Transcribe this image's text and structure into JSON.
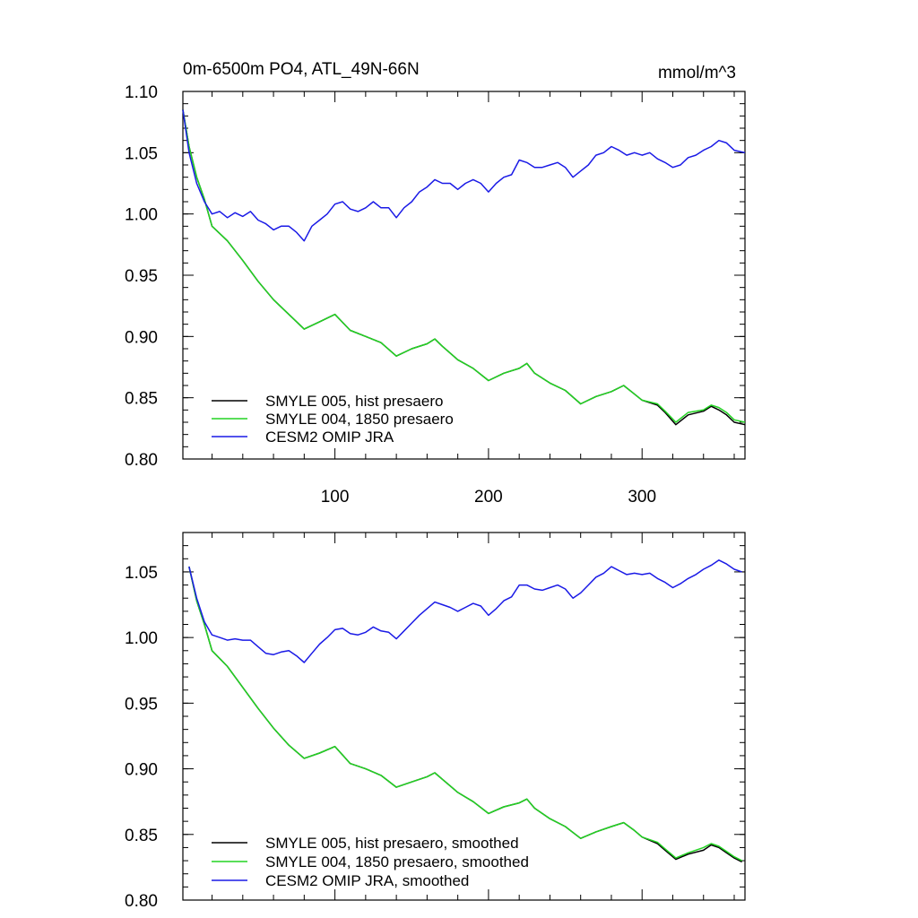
{
  "colors": {
    "black": "#000000",
    "green": "#22d322",
    "blue": "#1a1ae6"
  },
  "chart_data": [
    {
      "type": "line",
      "title": "0m-6500m PO4, ATL_49N-66N",
      "units": "mmol/m^3",
      "xlabel": "",
      "ylabel": "",
      "xlim": [
        1,
        367
      ],
      "ylim": [
        0.8,
        1.1
      ],
      "yticks": [
        0.8,
        0.85,
        0.9,
        0.95,
        1.0,
        1.05,
        1.1
      ],
      "ytick_labels": [
        "0.80",
        "0.85",
        "0.90",
        "0.95",
        "1.00",
        "1.05",
        "1.10"
      ],
      "xticks": [
        100,
        200,
        300
      ],
      "xtick_labels": [
        "100",
        "200",
        "300"
      ],
      "legend_position": "bottom-left",
      "series": [
        {
          "name": "SMYLE 005, hist presaero",
          "color": "#000000",
          "x": [
            1,
            5,
            10,
            15,
            20,
            30,
            40,
            50,
            60,
            70,
            80,
            90,
            100,
            110,
            120,
            130,
            140,
            150,
            160,
            165,
            170,
            180,
            190,
            200,
            210,
            220,
            225,
            230,
            240,
            250,
            260,
            270,
            280,
            288,
            295,
            300,
            310,
            315,
            322,
            330,
            340,
            345,
            350,
            355,
            360,
            367
          ],
          "values": [
            1.085,
            1.055,
            1.03,
            1.012,
            0.99,
            0.978,
            0.962,
            0.945,
            0.93,
            0.918,
            0.906,
            0.912,
            0.918,
            0.905,
            0.9,
            0.895,
            0.884,
            0.89,
            0.894,
            0.898,
            0.892,
            0.881,
            0.874,
            0.864,
            0.87,
            0.874,
            0.878,
            0.87,
            0.862,
            0.856,
            0.845,
            0.851,
            0.855,
            0.86,
            0.853,
            0.848,
            0.844,
            0.838,
            0.828,
            0.836,
            0.839,
            0.843,
            0.84,
            0.836,
            0.83,
            0.828
          ]
        },
        {
          "name": "SMYLE 004, 1850 presaero",
          "color": "#22d322",
          "x": [
            1,
            5,
            10,
            15,
            20,
            30,
            40,
            50,
            60,
            70,
            80,
            90,
            100,
            110,
            120,
            130,
            140,
            150,
            160,
            165,
            170,
            180,
            190,
            200,
            210,
            220,
            225,
            230,
            240,
            250,
            260,
            270,
            280,
            288,
            295,
            300,
            310,
            315,
            322,
            330,
            340,
            345,
            350,
            355,
            360,
            367
          ],
          "values": [
            1.085,
            1.055,
            1.03,
            1.012,
            0.99,
            0.978,
            0.962,
            0.945,
            0.93,
            0.918,
            0.906,
            0.912,
            0.918,
            0.905,
            0.9,
            0.895,
            0.884,
            0.89,
            0.894,
            0.898,
            0.892,
            0.881,
            0.874,
            0.864,
            0.87,
            0.874,
            0.878,
            0.87,
            0.862,
            0.856,
            0.845,
            0.851,
            0.855,
            0.86,
            0.853,
            0.848,
            0.845,
            0.839,
            0.83,
            0.838,
            0.84,
            0.844,
            0.842,
            0.838,
            0.832,
            0.83
          ]
        },
        {
          "name": "CESM2 OMIP JRA",
          "color": "#1a1ae6",
          "x": [
            1,
            5,
            10,
            15,
            20,
            25,
            30,
            35,
            40,
            45,
            50,
            55,
            60,
            65,
            70,
            75,
            80,
            85,
            90,
            95,
            100,
            105,
            110,
            115,
            120,
            125,
            130,
            135,
            140,
            145,
            150,
            155,
            160,
            165,
            170,
            175,
            180,
            185,
            190,
            195,
            200,
            205,
            210,
            215,
            220,
            225,
            230,
            235,
            240,
            245,
            250,
            255,
            260,
            265,
            270,
            275,
            280,
            285,
            290,
            295,
            300,
            305,
            310,
            315,
            320,
            325,
            330,
            335,
            340,
            345,
            350,
            355,
            360,
            367
          ],
          "values": [
            1.085,
            1.05,
            1.025,
            1.01,
            1.0,
            1.002,
            0.997,
            1.001,
            0.998,
            1.002,
            0.995,
            0.992,
            0.987,
            0.99,
            0.99,
            0.985,
            0.978,
            0.99,
            0.995,
            1.0,
            1.008,
            1.01,
            1.004,
            1.002,
            1.005,
            1.01,
            1.005,
            1.005,
            0.997,
            1.005,
            1.01,
            1.018,
            1.022,
            1.028,
            1.025,
            1.025,
            1.02,
            1.025,
            1.028,
            1.025,
            1.018,
            1.025,
            1.03,
            1.032,
            1.044,
            1.042,
            1.038,
            1.038,
            1.04,
            1.042,
            1.038,
            1.03,
            1.035,
            1.04,
            1.048,
            1.05,
            1.055,
            1.052,
            1.048,
            1.05,
            1.048,
            1.05,
            1.045,
            1.042,
            1.038,
            1.04,
            1.046,
            1.048,
            1.052,
            1.055,
            1.06,
            1.058,
            1.052,
            1.05
          ]
        }
      ]
    },
    {
      "type": "line",
      "title": "",
      "xlabel": "",
      "ylabel": "",
      "xlim": [
        1,
        367
      ],
      "ylim": [
        0.8,
        1.08
      ],
      "yticks": [
        0.8,
        0.85,
        0.9,
        0.95,
        1.0,
        1.05
      ],
      "ytick_labels": [
        "0.80",
        "0.85",
        "0.90",
        "0.95",
        "1.00",
        "1.05"
      ],
      "xticks": [
        100,
        200,
        300
      ],
      "xtick_labels": [],
      "legend_position": "bottom-left",
      "series": [
        {
          "name": "SMYLE 005, hist presaero, smoothed",
          "color": "#000000",
          "x": [
            5,
            10,
            15,
            20,
            30,
            40,
            50,
            60,
            70,
            80,
            90,
            100,
            110,
            120,
            130,
            140,
            150,
            160,
            165,
            170,
            180,
            190,
            200,
            210,
            220,
            225,
            230,
            240,
            250,
            260,
            270,
            280,
            288,
            295,
            300,
            310,
            315,
            322,
            330,
            340,
            345,
            350,
            355,
            360,
            365
          ],
          "values": [
            1.054,
            1.028,
            1.01,
            0.99,
            0.978,
            0.962,
            0.946,
            0.931,
            0.918,
            0.908,
            0.912,
            0.917,
            0.904,
            0.9,
            0.895,
            0.886,
            0.89,
            0.894,
            0.897,
            0.892,
            0.882,
            0.875,
            0.866,
            0.871,
            0.874,
            0.877,
            0.87,
            0.862,
            0.856,
            0.847,
            0.852,
            0.856,
            0.859,
            0.853,
            0.848,
            0.843,
            0.838,
            0.831,
            0.835,
            0.838,
            0.842,
            0.84,
            0.836,
            0.832,
            0.829
          ]
        },
        {
          "name": "SMYLE 004, 1850 presaero, smoothed",
          "color": "#22d322",
          "x": [
            5,
            10,
            15,
            20,
            30,
            40,
            50,
            60,
            70,
            80,
            90,
            100,
            110,
            120,
            130,
            140,
            150,
            160,
            165,
            170,
            180,
            190,
            200,
            210,
            220,
            225,
            230,
            240,
            250,
            260,
            270,
            280,
            288,
            295,
            300,
            310,
            315,
            322,
            330,
            340,
            345,
            350,
            355,
            360,
            365
          ],
          "values": [
            1.054,
            1.028,
            1.01,
            0.99,
            0.978,
            0.962,
            0.946,
            0.931,
            0.918,
            0.908,
            0.912,
            0.917,
            0.904,
            0.9,
            0.895,
            0.886,
            0.89,
            0.894,
            0.897,
            0.892,
            0.882,
            0.875,
            0.866,
            0.871,
            0.874,
            0.877,
            0.87,
            0.862,
            0.856,
            0.847,
            0.852,
            0.856,
            0.859,
            0.853,
            0.848,
            0.844,
            0.839,
            0.832,
            0.836,
            0.84,
            0.843,
            0.841,
            0.837,
            0.833,
            0.83
          ]
        },
        {
          "name": "CESM2 OMIP JRA, smoothed",
          "color": "#1a1ae6",
          "x": [
            5,
            10,
            15,
            20,
            25,
            30,
            35,
            40,
            45,
            50,
            55,
            60,
            65,
            70,
            75,
            80,
            85,
            90,
            95,
            100,
            105,
            110,
            115,
            120,
            125,
            130,
            135,
            140,
            145,
            150,
            155,
            160,
            165,
            170,
            175,
            180,
            185,
            190,
            195,
            200,
            205,
            210,
            215,
            220,
            225,
            230,
            235,
            240,
            245,
            250,
            255,
            260,
            265,
            270,
            275,
            280,
            285,
            290,
            295,
            300,
            305,
            310,
            315,
            320,
            325,
            330,
            335,
            340,
            345,
            350,
            355,
            360,
            365
          ],
          "values": [
            1.054,
            1.03,
            1.012,
            1.002,
            1.0,
            0.998,
            0.999,
            0.998,
            0.998,
            0.993,
            0.988,
            0.987,
            0.989,
            0.99,
            0.986,
            0.981,
            0.988,
            0.995,
            1.0,
            1.006,
            1.007,
            1.003,
            1.002,
            1.004,
            1.008,
            1.005,
            1.004,
            0.999,
            1.005,
            1.011,
            1.017,
            1.022,
            1.027,
            1.025,
            1.023,
            1.02,
            1.023,
            1.026,
            1.024,
            1.017,
            1.022,
            1.028,
            1.031,
            1.04,
            1.04,
            1.037,
            1.036,
            1.038,
            1.04,
            1.037,
            1.03,
            1.034,
            1.04,
            1.046,
            1.049,
            1.054,
            1.051,
            1.048,
            1.049,
            1.048,
            1.049,
            1.045,
            1.042,
            1.038,
            1.041,
            1.045,
            1.048,
            1.052,
            1.055,
            1.059,
            1.056,
            1.052,
            1.05
          ]
        }
      ]
    }
  ]
}
